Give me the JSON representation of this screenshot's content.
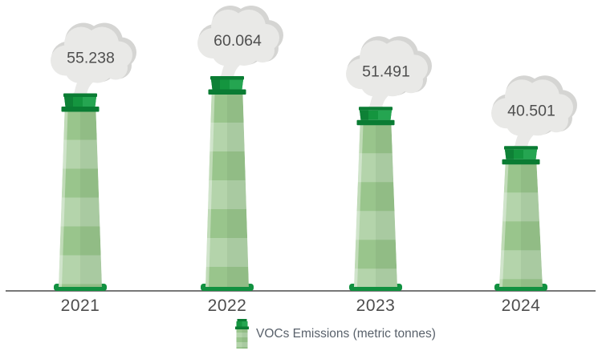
{
  "chart_data": {
    "type": "bar",
    "subtype": "pictorial-smokestack-chimneys-with-smoke-clouds",
    "categories": [
      "2021",
      "2022",
      "2023",
      "2024"
    ],
    "values": [
      55.238,
      60.064,
      51.491,
      40.501
    ],
    "value_labels": [
      "55.238",
      "60.064",
      "51.491",
      "40.501"
    ],
    "xlabel": "",
    "ylabel": "",
    "ylim": [
      0,
      60.064
    ],
    "grid": false,
    "legend": {
      "label": "VOCs Emissions (metric tonnes)",
      "position": "bottom-center"
    }
  },
  "colors": {
    "background": "#ffffff",
    "cap_dark": "#0a7c33",
    "cap_mid": "#14953f",
    "cap_left": "#0e8136",
    "cap_light": "#25a551",
    "foot": "#119140",
    "body_base": "#99c58c",
    "body_stripe": "rgba(255,255,255,0.27)",
    "body_shade": "rgba(45,95,45,0.08)",
    "body_highlight": "rgba(255,255,255,0.38)",
    "cloud": "#e9e9e7",
    "cloud_shadow": "#d5d5d3",
    "value_text": "#4f4f4f",
    "axis_text": "#4d4d4d",
    "legend_text": "#59616b",
    "axis_line": "#4a4a4a"
  }
}
